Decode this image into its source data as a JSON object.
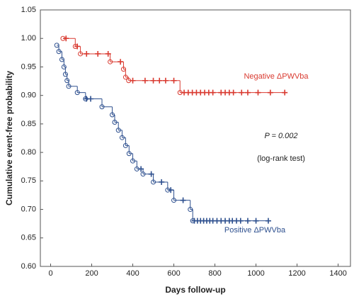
{
  "chart_data": {
    "type": "km",
    "x_label": "Days follow-up",
    "y_label": "Cumulative event-free probability",
    "xlim": [
      -50,
      1460
    ],
    "xticks": [
      0,
      200,
      400,
      600,
      800,
      1000,
      1200,
      1400
    ],
    "ylim": [
      0.6,
      1.05
    ],
    "yticks": [
      {
        "value": 0.6,
        "label": "0.60"
      },
      {
        "value": 0.65,
        "label": "0.65"
      },
      {
        "value": 0.7,
        "label": "0.70"
      },
      {
        "value": 0.75,
        "label": "0.75"
      },
      {
        "value": 0.8,
        "label": "0.80"
      },
      {
        "value": 0.85,
        "label": "0.85"
      },
      {
        "value": 0.9,
        "label": "0.90"
      },
      {
        "value": 0.95,
        "label": "0.95"
      },
      {
        "value": 1.0,
        "label": "1.00"
      },
      {
        "value": 1.05,
        "label": "1.05"
      }
    ],
    "annotations": [
      "P = 0.002",
      "(log-rank test)"
    ],
    "series": [
      {
        "name": "Negative ΔPWVba",
        "color": "#d93a30",
        "x": [
          60,
          120,
          145,
          290,
          355,
          365,
          380,
          630
        ],
        "values": [
          1.0,
          0.986,
          0.973,
          0.959,
          0.946,
          0.932,
          0.926,
          0.905
        ],
        "censored_x": [
          75,
          130,
          175,
          230,
          280,
          340,
          400,
          460,
          500,
          530,
          560,
          600,
          650,
          670,
          690,
          710,
          730,
          750,
          770,
          790,
          830,
          850,
          870,
          890,
          930,
          960,
          1010,
          1070,
          1140
        ],
        "censored_values": [
          1.0,
          0.986,
          0.973,
          0.973,
          0.973,
          0.959,
          0.926,
          0.926,
          0.926,
          0.926,
          0.926,
          0.926,
          0.905,
          0.905,
          0.905,
          0.905,
          0.905,
          0.905,
          0.905,
          0.905,
          0.905,
          0.905,
          0.905,
          0.905,
          0.905,
          0.905,
          0.905,
          0.905,
          0.905
        ]
      },
      {
        "name": "Positive ΔPWVba",
        "color": "#2d4f8e",
        "x": [
          30,
          40,
          55,
          65,
          72,
          80,
          88,
          130,
          170,
          250,
          300,
          312,
          330,
          348,
          365,
          382,
          400,
          420,
          450,
          500,
          570,
          600,
          680,
          692
        ],
        "values": [
          0.988,
          0.977,
          0.963,
          0.95,
          0.937,
          0.926,
          0.916,
          0.905,
          0.894,
          0.88,
          0.866,
          0.853,
          0.839,
          0.826,
          0.812,
          0.798,
          0.785,
          0.771,
          0.762,
          0.748,
          0.734,
          0.716,
          0.7,
          0.68
        ],
        "censored_x": [
          175,
          195,
          440,
          490,
          540,
          585,
          645,
          700,
          715,
          730,
          745,
          760,
          775,
          790,
          810,
          830,
          850,
          870,
          885,
          905,
          925,
          960,
          1000,
          1060
        ],
        "censored_values": [
          0.894,
          0.894,
          0.771,
          0.762,
          0.748,
          0.734,
          0.716,
          0.68,
          0.68,
          0.68,
          0.68,
          0.68,
          0.68,
          0.68,
          0.68,
          0.68,
          0.68,
          0.68,
          0.68,
          0.68,
          0.68,
          0.68,
          0.68,
          0.68
        ]
      }
    ]
  }
}
